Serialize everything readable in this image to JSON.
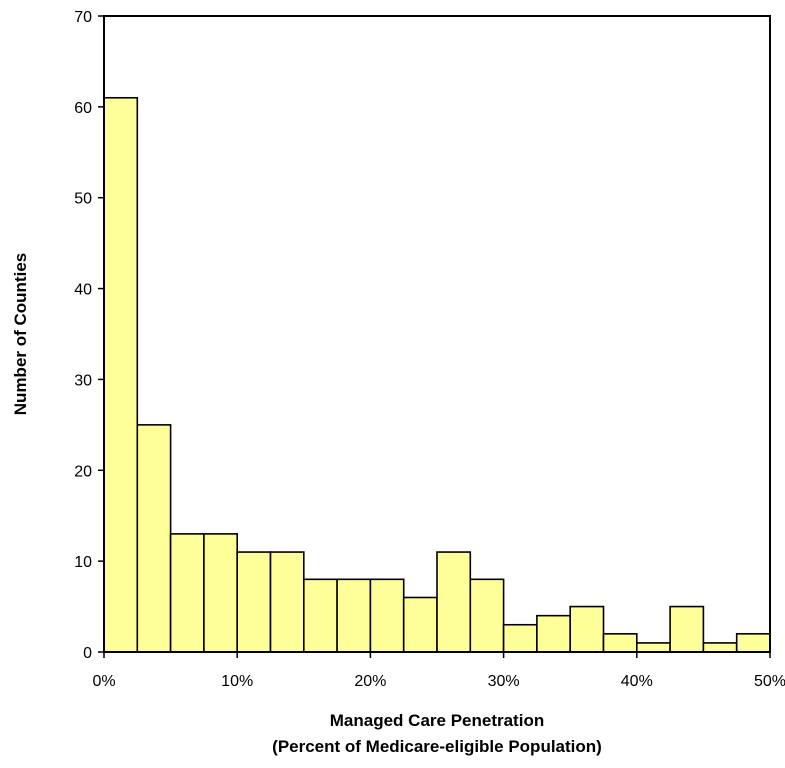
{
  "chart_data": {
    "type": "bar",
    "title": "",
    "xlabel": "Managed Care Penetration",
    "xlabel_line2": "(Percent of Medicare-eligible Population)",
    "ylabel": "Number of Counties",
    "ylim": [
      0,
      70
    ],
    "xlim": [
      0,
      50
    ],
    "y_ticks": [
      "0",
      "10",
      "20",
      "30",
      "40",
      "50",
      "60",
      "70"
    ],
    "x_ticks": [
      "0%",
      "10%",
      "20%",
      "30%",
      "40%",
      "50%"
    ],
    "bin_width": 2.5,
    "categories": [
      "0-2.5%",
      "2.5-5%",
      "5-7.5%",
      "7.5-10%",
      "10-12.5%",
      "12.5-15%",
      "15-17.5%",
      "17.5-20%",
      "20-22.5%",
      "22.5-25%",
      "25-27.5%",
      "27.5-30%",
      "30-32.5%",
      "32.5-35%",
      "35-37.5%",
      "37.5-40%",
      "40-42.5%",
      "42.5-45%",
      "45-47.5%",
      "47.5-50%"
    ],
    "values": [
      61,
      25,
      13,
      13,
      11,
      11,
      8,
      8,
      8,
      6,
      11,
      8,
      3,
      4,
      5,
      2,
      1,
      5,
      1,
      2
    ],
    "grid": false,
    "bar_color": "#ffff99",
    "bar_edge_color": "#000000"
  }
}
